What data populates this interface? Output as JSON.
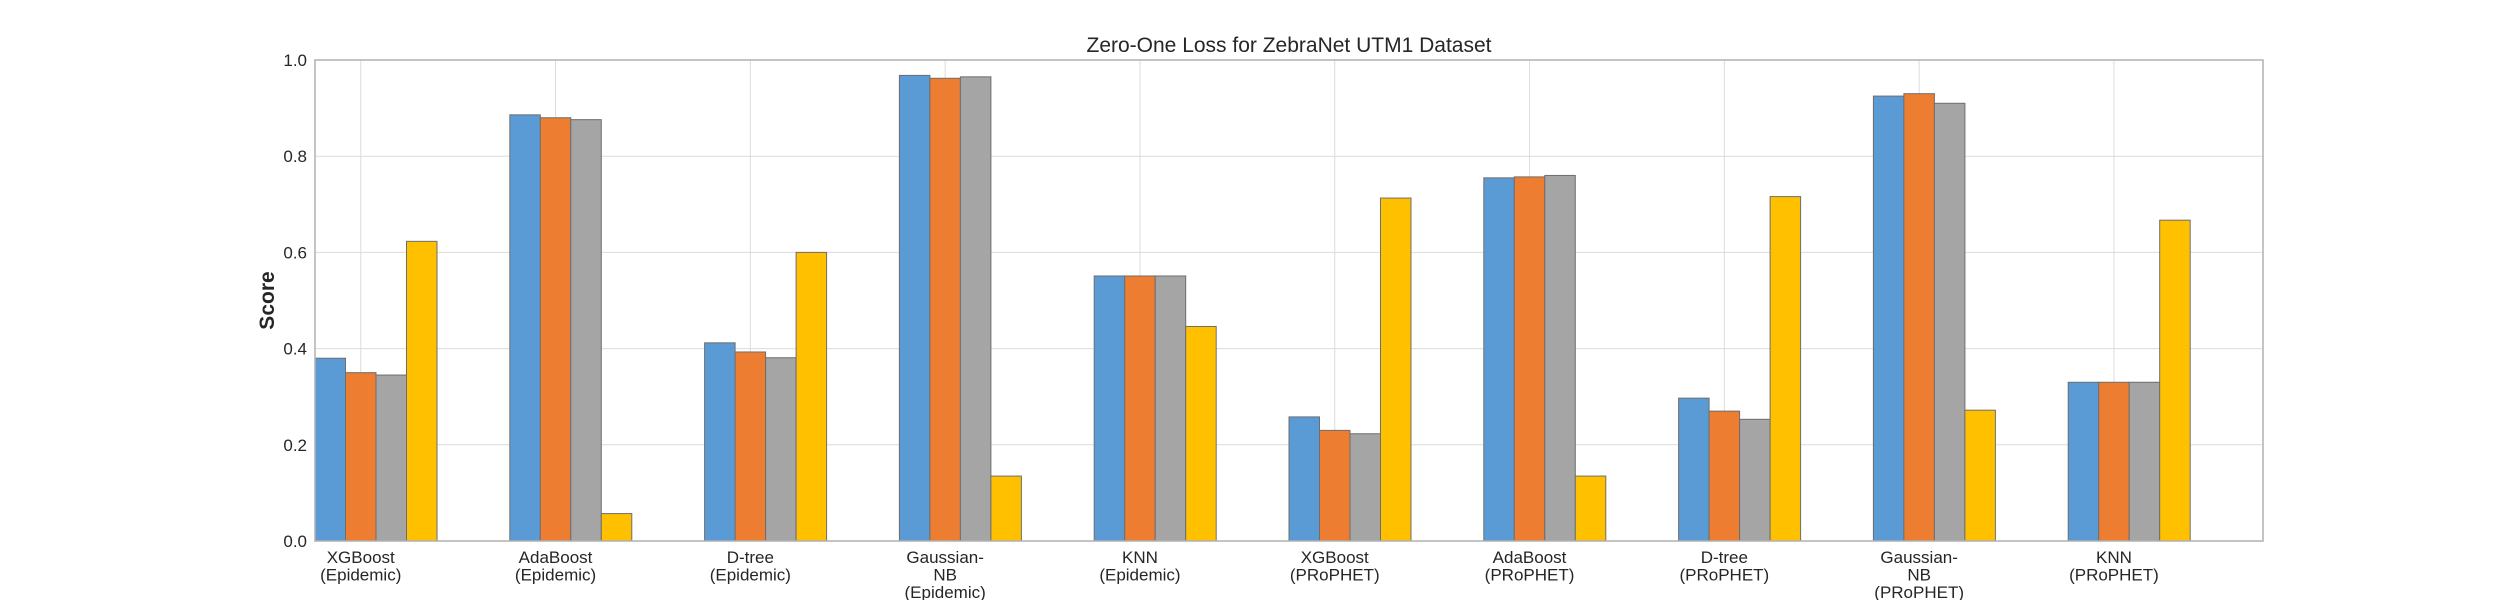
{
  "chart_data": {
    "type": "bar",
    "title": "Zero-One Loss for ZebraNet UTM1 Dataset",
    "xlabel": "",
    "ylabel": "Score",
    "ylim": [
      0,
      1.0
    ],
    "yticks": [
      "0.0",
      "0.2",
      "0.4",
      "0.6",
      "0.8",
      "1.0"
    ],
    "ytick_values": [
      0,
      0.2,
      0.4,
      0.6,
      0.8,
      1.0
    ],
    "grid": true,
    "legend": "none",
    "categories": [
      [
        "XGBoost",
        "(Epidemic)"
      ],
      [
        "AdaBoost",
        "(Epidemic)"
      ],
      [
        "D-tree",
        "(Epidemic)"
      ],
      [
        "Gaussian-",
        "NB",
        "(Epidemic)"
      ],
      [
        "KNN",
        "(Epidemic)"
      ],
      [
        "XGBoost",
        "(PRoPHET)"
      ],
      [
        "AdaBoost",
        "(PRoPHET)"
      ],
      [
        "D-tree",
        "(PRoPHET)"
      ],
      [
        "Gaussian-",
        "NB",
        "(PRoPHET)"
      ],
      [
        "KNN",
        "(PRoPHET)"
      ]
    ],
    "series": [
      {
        "color": "#5b9bd5",
        "values": [
          0.38,
          0.886,
          0.412,
          0.968,
          0.551,
          0.258,
          0.755,
          0.297,
          0.925,
          0.33
        ]
      },
      {
        "color": "#ed7d31",
        "values": [
          0.35,
          0.88,
          0.393,
          0.962,
          0.551,
          0.23,
          0.757,
          0.27,
          0.93,
          0.33
        ]
      },
      {
        "color": "#a5a5a5",
        "values": [
          0.345,
          0.876,
          0.381,
          0.965,
          0.551,
          0.223,
          0.76,
          0.253,
          0.91,
          0.33
        ]
      },
      {
        "color": "#ffc000",
        "values": [
          0.623,
          0.057,
          0.6,
          0.135,
          0.446,
          0.713,
          0.135,
          0.716,
          0.272,
          0.667
        ]
      }
    ]
  }
}
